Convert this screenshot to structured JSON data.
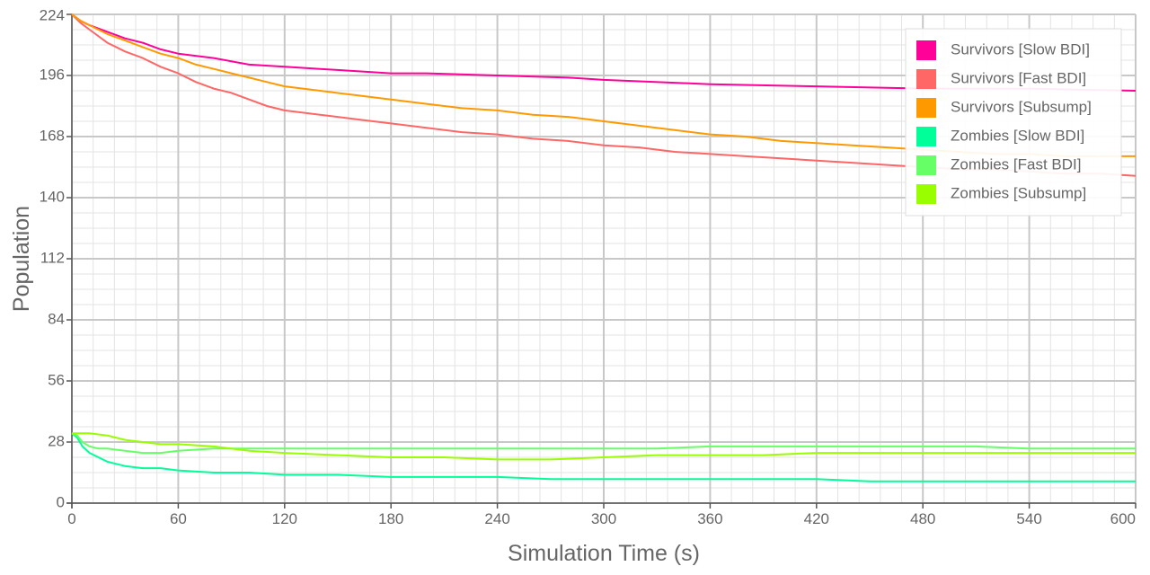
{
  "chart_data": {
    "type": "line",
    "title": "",
    "xlabel": "Simulation Time (s)",
    "ylabel": "Population",
    "xlim": [
      0,
      600
    ],
    "ylim": [
      0,
      224
    ],
    "x_ticks": [
      0,
      60,
      120,
      180,
      240,
      300,
      360,
      420,
      480,
      540,
      600
    ],
    "y_ticks": [
      0,
      28,
      56,
      84,
      112,
      140,
      168,
      196,
      224
    ],
    "grid": true,
    "legend_position": "top-right",
    "series": [
      {
        "name": "Survivors [Slow BDI]",
        "color": "#ff0099",
        "x": [
          0,
          5,
          10,
          20,
          30,
          40,
          50,
          60,
          80,
          100,
          120,
          140,
          160,
          180,
          200,
          240,
          280,
          300,
          360,
          420,
          480,
          540,
          600
        ],
        "y": [
          224,
          221,
          219,
          216,
          213,
          211,
          208,
          206,
          204,
          201,
          200,
          199,
          198,
          197,
          197,
          196,
          195,
          194,
          192,
          191,
          190,
          190,
          189
        ]
      },
      {
        "name": "Survivors [Fast BDI]",
        "color": "#ff6666",
        "x": [
          0,
          5,
          10,
          20,
          30,
          40,
          50,
          60,
          70,
          80,
          90,
          100,
          110,
          120,
          140,
          160,
          180,
          200,
          220,
          240,
          260,
          280,
          300,
          320,
          340,
          360,
          380,
          400,
          420,
          440,
          460,
          480,
          500,
          520,
          540,
          560,
          580,
          600
        ],
        "y": [
          224,
          220,
          217,
          211,
          207,
          204,
          200,
          197,
          193,
          190,
          188,
          185,
          182,
          180,
          178,
          176,
          174,
          172,
          170,
          169,
          167,
          166,
          164,
          163,
          161,
          160,
          159,
          158,
          157,
          156,
          155,
          154,
          153,
          153,
          152,
          151,
          151,
          150
        ]
      },
      {
        "name": "Survivors [Subsump]",
        "color": "#ff9900",
        "x": [
          0,
          5,
          10,
          20,
          30,
          40,
          50,
          60,
          70,
          80,
          90,
          100,
          110,
          120,
          140,
          160,
          180,
          200,
          220,
          240,
          260,
          280,
          300,
          320,
          340,
          360,
          380,
          400,
          420,
          440,
          460,
          480,
          500,
          520,
          540,
          560,
          580,
          600
        ],
        "y": [
          224,
          221,
          219,
          215,
          212,
          209,
          206,
          204,
          201,
          199,
          197,
          195,
          193,
          191,
          189,
          187,
          185,
          183,
          181,
          180,
          178,
          177,
          175,
          173,
          171,
          169,
          168,
          166,
          165,
          164,
          163,
          162,
          161,
          160,
          160,
          159,
          159,
          159
        ]
      },
      {
        "name": "Zombies [Slow BDI]",
        "color": "#00ff99",
        "x": [
          0,
          3,
          6,
          10,
          15,
          20,
          25,
          30,
          40,
          50,
          60,
          80,
          100,
          120,
          150,
          180,
          210,
          240,
          270,
          300,
          330,
          360,
          390,
          420,
          450,
          480,
          510,
          540,
          570,
          600
        ],
        "y": [
          32,
          30,
          26,
          23,
          21,
          19,
          18,
          17,
          16,
          16,
          15,
          14,
          14,
          13,
          13,
          12,
          12,
          12,
          11,
          11,
          11,
          11,
          11,
          11,
          10,
          10,
          10,
          10,
          10,
          10
        ]
      },
      {
        "name": "Zombies [Fast BDI]",
        "color": "#66ff66",
        "x": [
          0,
          3,
          6,
          10,
          15,
          20,
          30,
          40,
          50,
          60,
          80,
          100,
          120,
          150,
          180,
          210,
          240,
          270,
          300,
          330,
          360,
          390,
          420,
          450,
          480,
          510,
          540,
          570,
          600
        ],
        "y": [
          32,
          31,
          28,
          26,
          25,
          25,
          24,
          23,
          23,
          24,
          25,
          25,
          25,
          25,
          25,
          25,
          25,
          25,
          25,
          25,
          26,
          26,
          26,
          26,
          26,
          26,
          25,
          25,
          25
        ]
      },
      {
        "name": "Zombies [Subsump]",
        "color": "#99ff00",
        "x": [
          0,
          5,
          10,
          20,
          30,
          40,
          50,
          60,
          80,
          100,
          120,
          150,
          180,
          210,
          240,
          270,
          300,
          330,
          360,
          390,
          420,
          450,
          480,
          510,
          540,
          570,
          600
        ],
        "y": [
          32,
          32,
          32,
          31,
          29,
          28,
          27,
          27,
          26,
          24,
          23,
          22,
          21,
          21,
          20,
          20,
          21,
          22,
          22,
          22,
          23,
          23,
          23,
          23,
          23,
          23,
          23
        ]
      }
    ]
  }
}
